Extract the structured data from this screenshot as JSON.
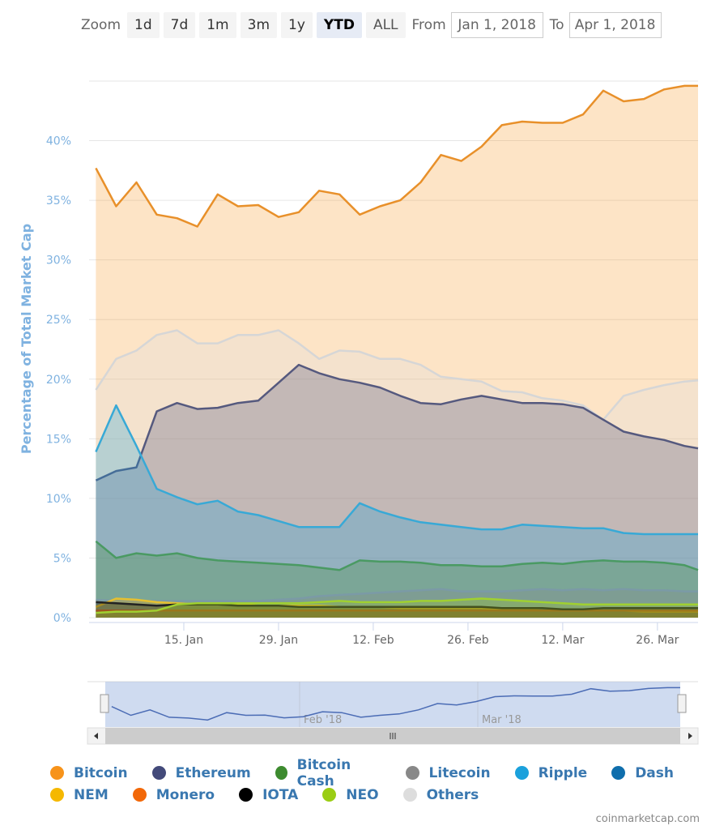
{
  "toolbar": {
    "zoom_label": "Zoom",
    "buttons": [
      "1d",
      "7d",
      "1m",
      "3m",
      "1y",
      "YTD",
      "ALL"
    ],
    "selected": "YTD",
    "from_label": "From",
    "from_value": "Jan 1, 2018",
    "to_label": "To",
    "to_value": "Apr 1, 2018"
  },
  "credit": "coinmarketcap.com",
  "navigator": {
    "labels": [
      "Feb '18",
      "Mar '18"
    ]
  },
  "chart_data": {
    "type": "area",
    "ylabel": "Percentage of Total Market Cap",
    "ylim": [
      0,
      45
    ],
    "yticks": [
      "0%",
      "5%",
      "10%",
      "15%",
      "20%",
      "25%",
      "30%",
      "35%",
      "40%"
    ],
    "xlim": [
      "2018-01-01",
      "2018-04-01"
    ],
    "xticks": [
      {
        "date": "2018-01-15",
        "label": "15. Jan"
      },
      {
        "date": "2018-01-29",
        "label": "29. Jan"
      },
      {
        "date": "2018-02-12",
        "label": "12. Feb"
      },
      {
        "date": "2018-02-26",
        "label": "26. Feb"
      },
      {
        "date": "2018-03-12",
        "label": "12. Mar"
      },
      {
        "date": "2018-03-26",
        "label": "26. Mar"
      }
    ],
    "grid": true,
    "legend_position": "bottom",
    "x": [
      "2018-01-02",
      "2018-01-05",
      "2018-01-08",
      "2018-01-11",
      "2018-01-14",
      "2018-01-17",
      "2018-01-20",
      "2018-01-23",
      "2018-01-26",
      "2018-01-29",
      "2018-02-01",
      "2018-02-04",
      "2018-02-07",
      "2018-02-10",
      "2018-02-13",
      "2018-02-16",
      "2018-02-19",
      "2018-02-22",
      "2018-02-25",
      "2018-02-28",
      "2018-03-03",
      "2018-03-06",
      "2018-03-09",
      "2018-03-12",
      "2018-03-15",
      "2018-03-18",
      "2018-03-21",
      "2018-03-24",
      "2018-03-27",
      "2018-03-30",
      "2018-04-01"
    ],
    "series": [
      {
        "name": "Bitcoin",
        "color": "#f7931a",
        "line": "#e8902a",
        "values": [
          37.7,
          34.5,
          36.5,
          33.8,
          33.5,
          32.8,
          35.5,
          34.5,
          34.6,
          33.6,
          34.0,
          35.8,
          35.5,
          33.8,
          34.5,
          35.0,
          36.5,
          38.8,
          38.3,
          39.5,
          41.3,
          41.6,
          41.5,
          41.5,
          42.2,
          44.2,
          43.3,
          43.5,
          44.3,
          44.6,
          44.6
        ]
      },
      {
        "name": "Others",
        "color": "#dddddd",
        "line": "#d6d6d6",
        "values": [
          19.1,
          21.7,
          22.4,
          23.7,
          24.1,
          23.0,
          23.0,
          23.7,
          23.7,
          24.1,
          23.0,
          21.7,
          22.4,
          22.3,
          21.7,
          21.7,
          21.2,
          20.2,
          20.0,
          19.8,
          19.0,
          18.9,
          18.4,
          18.2,
          17.8,
          16.6,
          18.6,
          19.1,
          19.5,
          19.8,
          19.9
        ]
      },
      {
        "name": "Ethereum",
        "color": "#434a7a",
        "line": "#55597e",
        "values": [
          11.5,
          12.3,
          12.6,
          17.3,
          18.0,
          17.5,
          17.6,
          18.0,
          18.2,
          19.7,
          21.2,
          20.5,
          20.0,
          19.7,
          19.3,
          18.6,
          18.0,
          17.9,
          18.3,
          18.6,
          18.3,
          18.0,
          18.0,
          17.9,
          17.6,
          16.6,
          15.6,
          15.2,
          14.9,
          14.4,
          14.2
        ]
      },
      {
        "name": "Ripple",
        "color": "#1ba1dc",
        "line": "#38a9d6",
        "values": [
          13.9,
          17.8,
          14.4,
          10.8,
          10.1,
          9.5,
          9.8,
          8.9,
          8.6,
          8.1,
          7.6,
          7.6,
          7.6,
          9.6,
          8.9,
          8.4,
          8.0,
          7.8,
          7.6,
          7.4,
          7.4,
          7.8,
          7.7,
          7.6,
          7.5,
          7.5,
          7.1,
          7.0,
          7.0,
          7.0,
          7.0
        ]
      },
      {
        "name": "Bitcoin Cash",
        "color": "#3d8b2f",
        "line": "#4a9a63",
        "values": [
          6.4,
          5.0,
          5.4,
          5.2,
          5.4,
          5.0,
          4.8,
          4.7,
          4.6,
          4.5,
          4.4,
          4.2,
          4.0,
          4.8,
          4.7,
          4.7,
          4.6,
          4.4,
          4.4,
          4.3,
          4.3,
          4.5,
          4.6,
          4.5,
          4.7,
          4.8,
          4.7,
          4.7,
          4.6,
          4.4,
          4.0
        ]
      },
      {
        "name": "Litecoin",
        "color": "#888888",
        "line": "#7b9aa6",
        "values": [
          1.5,
          1.4,
          1.4,
          1.4,
          1.4,
          1.4,
          1.4,
          1.4,
          1.4,
          1.5,
          1.6,
          1.8,
          1.9,
          2.0,
          2.1,
          2.2,
          2.3,
          2.4,
          2.2,
          2.2,
          2.2,
          2.3,
          2.4,
          2.3,
          2.4,
          2.3,
          2.4,
          2.3,
          2.3,
          2.2,
          2.2
        ]
      },
      {
        "name": "Dash",
        "color": "#0f6eac",
        "line": "#2a6f9f",
        "values": [
          0.6,
          0.6,
          0.6,
          0.6,
          0.6,
          0.6,
          0.6,
          0.6,
          0.6,
          0.6,
          0.6,
          0.6,
          0.6,
          0.6,
          0.6,
          0.6,
          0.6,
          0.6,
          0.6,
          0.6,
          0.6,
          0.6,
          0.6,
          0.6,
          0.6,
          0.6,
          0.6,
          0.6,
          0.6,
          0.6,
          0.6
        ]
      },
      {
        "name": "NEM",
        "color": "#f5b800",
        "line": "#e6c030",
        "values": [
          0.9,
          1.6,
          1.5,
          1.3,
          1.2,
          1.1,
          1.1,
          1.1,
          1.0,
          1.0,
          1.0,
          1.0,
          0.9,
          0.9,
          0.9,
          0.8,
          0.8,
          0.8,
          0.8,
          0.8,
          0.7,
          0.7,
          0.6,
          0.6,
          0.6,
          0.6,
          0.6,
          0.5,
          0.5,
          0.5,
          0.5
        ]
      },
      {
        "name": "Monero",
        "color": "#f26808",
        "line": "#d8782a",
        "values": [
          0.6,
          0.6,
          0.6,
          0.6,
          0.6,
          0.6,
          0.6,
          0.6,
          0.6,
          0.6,
          0.6,
          0.6,
          0.6,
          0.6,
          0.6,
          0.6,
          0.6,
          0.6,
          0.6,
          0.6,
          0.6,
          0.6,
          0.6,
          0.6,
          0.6,
          0.6,
          0.6,
          0.6,
          0.6,
          0.6,
          0.6
        ]
      },
      {
        "name": "IOTA",
        "color": "#000000",
        "line": "#222222",
        "values": [
          1.3,
          1.2,
          1.1,
          1.0,
          1.1,
          1.1,
          1.1,
          1.0,
          1.0,
          1.0,
          0.9,
          0.9,
          0.9,
          0.9,
          0.9,
          0.9,
          0.9,
          0.9,
          0.9,
          0.9,
          0.8,
          0.8,
          0.8,
          0.7,
          0.7,
          0.8,
          0.8,
          0.8,
          0.8,
          0.8,
          0.8
        ]
      },
      {
        "name": "NEO",
        "color": "#9acd14",
        "line": "#a0d030",
        "values": [
          0.4,
          0.5,
          0.5,
          0.6,
          1.1,
          1.2,
          1.2,
          1.2,
          1.2,
          1.2,
          1.2,
          1.3,
          1.4,
          1.3,
          1.3,
          1.3,
          1.4,
          1.4,
          1.5,
          1.6,
          1.5,
          1.4,
          1.3,
          1.2,
          1.1,
          1.1,
          1.1,
          1.1,
          1.1,
          1.1,
          1.1
        ]
      }
    ]
  }
}
